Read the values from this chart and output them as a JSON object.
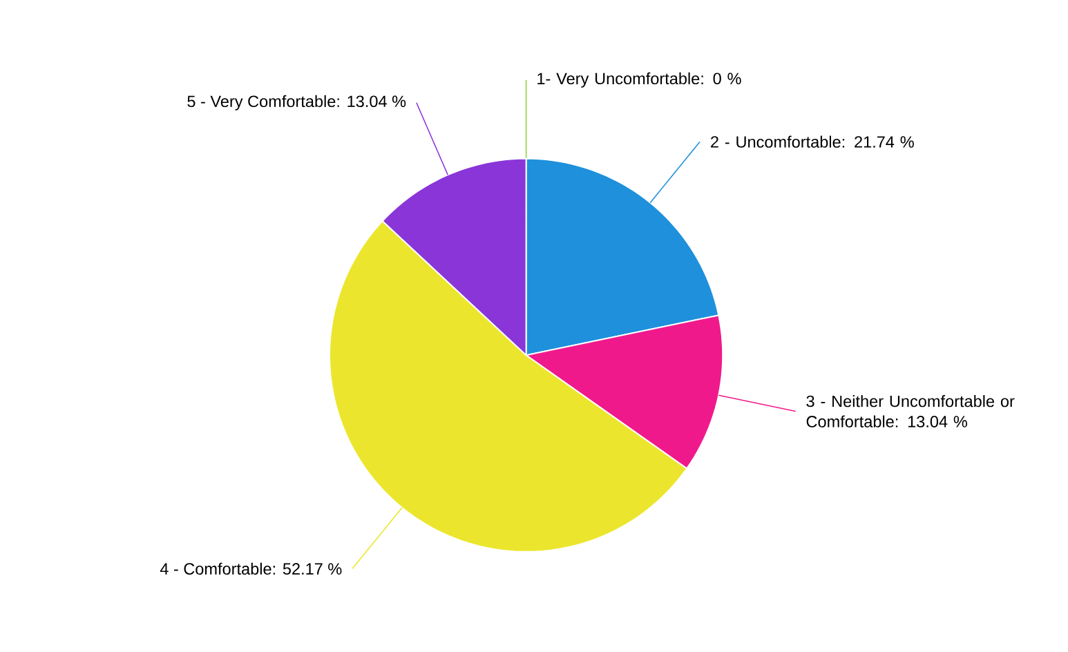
{
  "chart_data": {
    "type": "pie",
    "categories": [
      "1- Very Uncomfortable: 0 %",
      "2 - Uncomfortable: 21.74 %",
      "3 - Neither Uncomfortable or Comfortable: 13.04 %",
      "4 - Comfortable: 52.17 %",
      "5 - Very Comfortable: 13.04 %"
    ],
    "values": [
      0,
      21.74,
      13.04,
      52.17,
      13.04
    ],
    "colors": [
      "#8bd53b",
      "#1e90dc",
      "#f0198c",
      "#ebe62d",
      "#8a35d8"
    ]
  }
}
